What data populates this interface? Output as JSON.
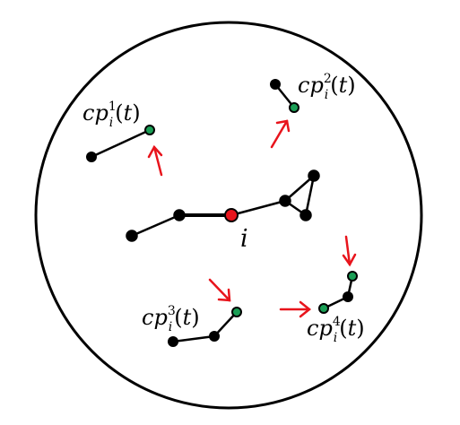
{
  "colors": {
    "stroke": "#000000",
    "node_fill": "#000000",
    "center_node_fill": "#e8141c",
    "contact_node_fill": "#1a9e55",
    "arrow": "#e8141c",
    "background": "#ffffff"
  },
  "center": {
    "label": "i"
  },
  "contacts": [
    {
      "base": "cp",
      "sub": "i",
      "sup": "1",
      "lparen": "(",
      "arg": "t",
      "rparen": ")"
    },
    {
      "base": "cp",
      "sub": "i",
      "sup": "2",
      "lparen": "(",
      "arg": "t",
      "rparen": ")"
    },
    {
      "base": "cp",
      "sub": "i",
      "sup": "3",
      "lparen": "(",
      "arg": "t",
      "rparen": ")"
    },
    {
      "base": "cp",
      "sub": "i",
      "sup": "4",
      "lparen": "(",
      "arg": "t",
      "rparen": ")"
    }
  ]
}
